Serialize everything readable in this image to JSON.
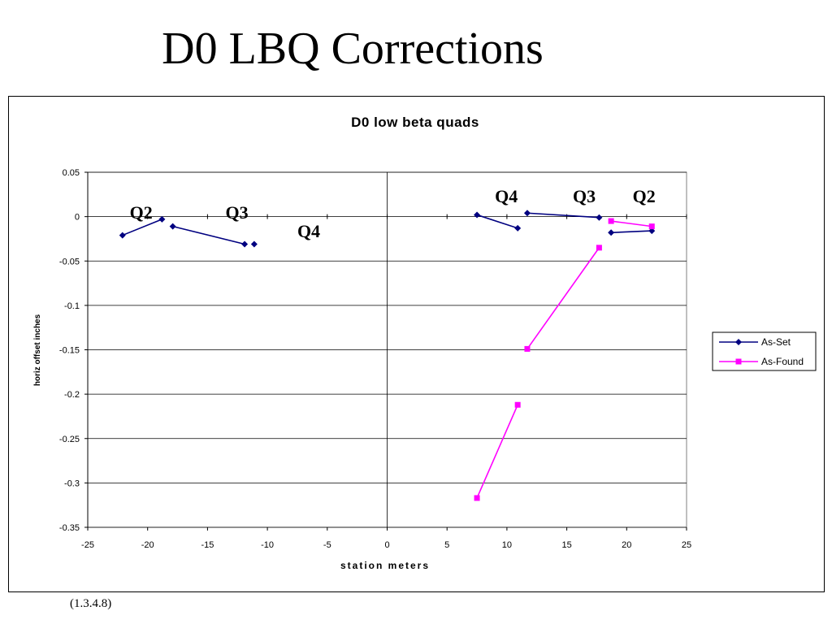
{
  "slide": {
    "title": "D0 LBQ Corrections",
    "footnote": "(1.3.4.8)"
  },
  "chart_data": {
    "type": "line",
    "title": "D0 low beta quads",
    "xlabel": "station meters",
    "ylabel": "horiz offset inches",
    "xlim": [
      -25,
      25
    ],
    "ylim": [
      -0.35,
      0.05
    ],
    "xticks": [
      "-25",
      "-20",
      "-15",
      "-10",
      "-5",
      "0",
      "5",
      "10",
      "15",
      "20",
      "25"
    ],
    "yticks": [
      "0.05",
      "0",
      "-0.05",
      "-0.1",
      "-0.15",
      "-0.2",
      "-0.25",
      "-0.3",
      "-0.35"
    ],
    "grid": "horizontal",
    "legend_position": "right",
    "series": [
      {
        "name": "As-Set",
        "color": "#000080",
        "marker": "diamond",
        "segments": [
          [
            [
              -22.1,
              -0.021
            ],
            [
              -18.8,
              -0.003
            ]
          ],
          [
            [
              -17.9,
              -0.011
            ],
            [
              -11.9,
              -0.031
            ]
          ],
          [
            [
              -11.1,
              -0.031
            ]
          ],
          [
            [
              7.5,
              0.002
            ],
            [
              10.9,
              -0.013
            ]
          ],
          [
            [
              11.7,
              0.004
            ],
            [
              17.7,
              -0.001
            ]
          ],
          [
            [
              18.7,
              -0.018
            ],
            [
              22.1,
              -0.016
            ]
          ]
        ]
      },
      {
        "name": "As-Found",
        "color": "#ff00ff",
        "marker": "square",
        "segments": [
          [
            [
              7.5,
              -0.317
            ],
            [
              10.9,
              -0.212
            ]
          ],
          [
            [
              11.7,
              -0.149
            ],
            [
              17.7,
              -0.035
            ]
          ],
          [
            [
              18.7,
              -0.005
            ],
            [
              22.1,
              -0.011
            ]
          ]
        ]
      }
    ],
    "annotations": [
      {
        "text": "Q2",
        "x": -21.5,
        "y": -0.002
      },
      {
        "text": "Q3",
        "x": -13.5,
        "y": -0.002
      },
      {
        "text": "Q4",
        "x": -7.5,
        "y": -0.023
      },
      {
        "text": "Q4",
        "x": 9.0,
        "y": 0.016
      },
      {
        "text": "Q3",
        "x": 15.5,
        "y": 0.016
      },
      {
        "text": "Q2",
        "x": 20.5,
        "y": 0.016
      }
    ]
  }
}
